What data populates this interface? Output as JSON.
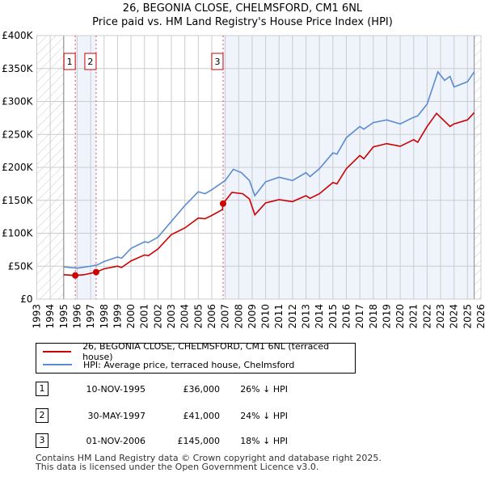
{
  "chart_data": {
    "type": "line",
    "title": "26, BEGONIA CLOSE, CHELMSFORD, CM1 6NL",
    "subtitle": "Price paid vs. HM Land Registry's House Price Index (HPI)",
    "xlim": [
      1993,
      2026
    ],
    "ylim": [
      0,
      400000
    ],
    "x_ticks": [
      "1993",
      "1994",
      "1995",
      "1996",
      "1997",
      "1998",
      "1999",
      "2000",
      "2001",
      "2002",
      "2003",
      "2004",
      "2005",
      "2006",
      "2007",
      "2008",
      "2009",
      "2010",
      "2011",
      "2012",
      "2013",
      "2014",
      "2015",
      "2016",
      "2017",
      "2018",
      "2019",
      "2020",
      "2021",
      "2022",
      "2023",
      "2024",
      "2025",
      "2026"
    ],
    "y_ticks": [
      {
        "v": 0,
        "label": "£0"
      },
      {
        "v": 50000,
        "label": "£50K"
      },
      {
        "v": 100000,
        "label": "£100K"
      },
      {
        "v": 150000,
        "label": "£150K"
      },
      {
        "v": 200000,
        "label": "£200K"
      },
      {
        "v": 250000,
        "label": "£250K"
      },
      {
        "v": 300000,
        "label": "£300K"
      },
      {
        "v": 350000,
        "label": "£350K"
      },
      {
        "v": 400000,
        "label": "£400K"
      }
    ],
    "grid": true,
    "series": [
      {
        "name": "26, BEGONIA CLOSE, CHELMSFORD, CM1 6NL (terraced house)",
        "color": "#cc0000",
        "x": [
          1995,
          1995.86,
          1996.5,
          1997.4,
          1998,
          1999,
          1999.3,
          2000,
          2001,
          2001.3,
          2002,
          2003,
          2004,
          2005,
          2005.5,
          2006,
          2006.8,
          2006.84,
          2007.5,
          2008.3,
          2008.8,
          2009.2,
          2010,
          2011,
          2012,
          2013,
          2013.3,
          2014,
          2015,
          2015.3,
          2016,
          2017,
          2017.3,
          2018,
          2019,
          2020,
          2021,
          2021.3,
          2022,
          2022.7,
          2023.3,
          2023.7,
          2024,
          2025,
          2025.5
        ],
        "y": [
          37000,
          36000,
          37000,
          41000,
          46000,
          50000,
          48000,
          58000,
          67000,
          66000,
          76000,
          98000,
          108000,
          123000,
          122000,
          127000,
          136000,
          145000,
          162000,
          160000,
          152000,
          128000,
          146000,
          151000,
          148000,
          157000,
          153000,
          160000,
          177000,
          175000,
          198000,
          218000,
          213000,
          231000,
          236000,
          232000,
          242000,
          238000,
          262000,
          282000,
          270000,
          262000,
          266000,
          272000,
          283000
        ]
      },
      {
        "name": "HPI: Average price, terraced house, Chelmsford",
        "color": "#5b8bd0",
        "x": [
          1995,
          1996,
          1997,
          1997.5,
          1998,
          1999,
          1999.3,
          2000,
          2001,
          2001.3,
          2002,
          2003,
          2004,
          2005,
          2005.5,
          2006,
          2007,
          2007.6,
          2008.2,
          2008.8,
          2009.2,
          2010,
          2011,
          2012,
          2013,
          2013.3,
          2014,
          2015,
          2015.3,
          2016,
          2017,
          2017.3,
          2018,
          2019,
          2020,
          2021,
          2021.3,
          2022,
          2022.8,
          2023.3,
          2023.7,
          2024,
          2025,
          2025.5
        ],
        "y": [
          49000,
          47000,
          50000,
          52000,
          57000,
          64000,
          62000,
          77000,
          87000,
          86000,
          94000,
          118000,
          142000,
          163000,
          160000,
          166000,
          180000,
          197000,
          192000,
          180000,
          157000,
          178000,
          185000,
          180000,
          192000,
          186000,
          198000,
          222000,
          220000,
          245000,
          262000,
          258000,
          268000,
          272000,
          266000,
          276000,
          278000,
          296000,
          345000,
          332000,
          338000,
          322000,
          330000,
          345000
        ]
      }
    ],
    "sales": [
      {
        "n": "1",
        "x": 1995.86,
        "y": 36000
      },
      {
        "n": "2",
        "x": 1997.41,
        "y": 41000
      },
      {
        "n": "3",
        "x": 2006.84,
        "y": 145000
      }
    ],
    "data_end": 2025.5
  },
  "legend": {
    "items": [
      "26, BEGONIA CLOSE, CHELMSFORD, CM1 6NL (terraced house)",
      "HPI: Average price, terraced house, Chelmsford"
    ]
  },
  "sales_table": [
    {
      "n": "1",
      "date": "10-NOV-1995",
      "price": "£36,000",
      "hpi": "26% ↓ HPI"
    },
    {
      "n": "2",
      "date": "30-MAY-1997",
      "price": "£41,000",
      "hpi": "24% ↓ HPI"
    },
    {
      "n": "3",
      "date": "01-NOV-2006",
      "price": "£145,000",
      "hpi": "18% ↓ HPI"
    }
  ],
  "footer": {
    "line1": "Contains HM Land Registry data © Crown copyright and database right 2025.",
    "line2": "This data is licensed under the Open Government Licence v3.0."
  }
}
